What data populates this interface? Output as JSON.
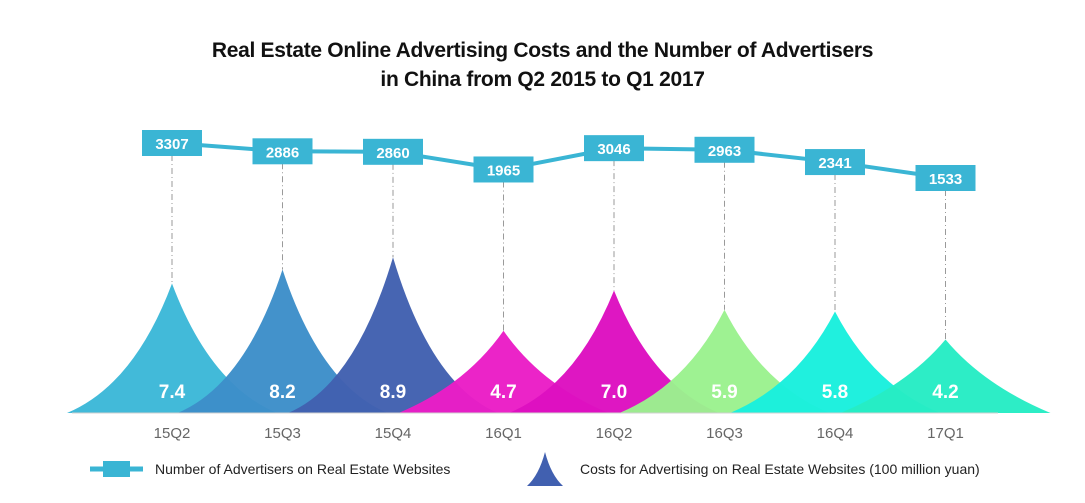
{
  "chart_data": {
    "type": "line+area",
    "title_line1": "Real Estate Online Advertising Costs and the Number of Advertisers",
    "title_line2": "in China from Q2 2015 to Q1 2017",
    "categories": [
      "15Q2",
      "15Q3",
      "15Q4",
      "16Q1",
      "16Q2",
      "16Q3",
      "16Q4",
      "17Q1"
    ],
    "series": [
      {
        "name": "Number of Advertisers on Real Estate Websites",
        "type": "line",
        "values": [
          3307,
          2886,
          2860,
          1965,
          3046,
          2963,
          2341,
          1533
        ],
        "color": "#3ab5d4"
      },
      {
        "name": "Costs for Advertising on Real Estate Websites (100 million yuan)",
        "type": "peak",
        "values": [
          7.4,
          8.2,
          8.9,
          4.7,
          7.0,
          5.9,
          5.8,
          4.2
        ],
        "colors": [
          "#3cb8d8",
          "#3d8ec9",
          "#4160b0",
          "#ea1dc6",
          "#dd0fc0",
          "#9bf28e",
          "#19f0dd",
          "#26ecc4"
        ]
      }
    ],
    "grid": false,
    "legend_position": "bottom"
  }
}
